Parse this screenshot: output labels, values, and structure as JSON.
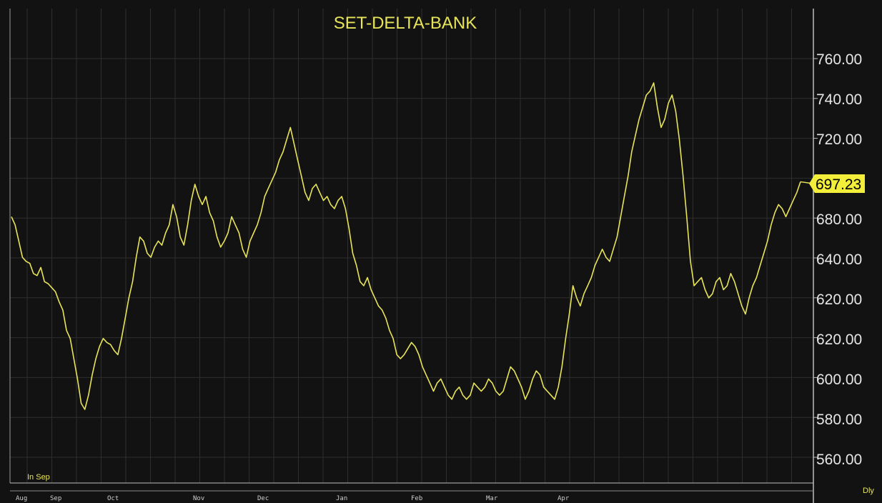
{
  "chart_data": {
    "type": "line",
    "title": "SET-DELTA-BANK",
    "period_label": "Dly",
    "corner_label": "In Sep",
    "y_tick_labels": [
      "760.00",
      "740.00",
      "720.00",
      "680.00",
      "640.00",
      "620.00",
      "620.00",
      "600.00",
      "580.00",
      "560.00"
    ],
    "last_value_label": "697.23",
    "grid": true,
    "colors": {
      "background": "#121212",
      "line": "#e8e45a",
      "grid": "#2e2e2e",
      "text": "#e6e6e6",
      "badge": "#f3ee3a"
    },
    "x_month_labels": [
      "Aug",
      "Sep",
      "Oct",
      "Nov",
      "Dec",
      "Jan",
      "Feb",
      "Mar",
      "Apr"
    ],
    "series": [
      {
        "values": [
          680,
          676,
          668,
          660,
          658,
          657,
          652,
          651,
          655,
          648,
          647,
          645,
          643,
          638,
          634,
          624,
          620,
          610,
          600,
          588,
          585,
          592,
          602,
          610,
          616,
          620,
          618,
          617,
          614,
          612,
          620,
          630,
          640,
          648,
          660,
          670,
          668,
          662,
          660,
          665,
          668,
          666,
          672,
          676,
          686,
          680,
          670,
          666,
          676,
          688,
          696,
          690,
          686,
          690,
          682,
          678,
          670,
          665,
          668,
          672,
          680,
          676,
          672,
          664,
          660,
          668,
          672,
          676,
          682,
          690,
          694,
          698,
          702,
          708,
          712,
          718,
          724,
          716,
          708,
          700,
          692,
          688,
          694,
          696,
          692,
          688,
          690,
          686,
          684,
          688,
          690,
          684,
          674,
          662,
          656,
          648,
          646,
          650,
          644,
          640,
          636,
          634,
          630,
          624,
          620,
          612,
          610,
          612,
          615,
          618,
          616,
          612,
          606,
          602,
          598,
          594,
          598,
          600,
          596,
          592,
          590,
          594,
          596,
          592,
          590,
          592,
          598,
          596,
          594,
          596,
          600,
          598,
          594,
          592,
          594,
          600,
          606,
          604,
          600,
          596,
          590,
          594,
          600,
          604,
          602,
          596,
          594,
          592,
          590,
          596,
          606,
          620,
          632,
          646,
          640,
          636,
          642,
          646,
          650,
          656,
          660,
          664,
          660,
          658,
          664,
          670,
          680,
          690,
          700,
          712,
          720,
          728,
          734,
          740,
          742,
          746,
          734,
          724,
          728,
          736,
          740,
          732,
          718,
          700,
          680,
          658,
          646,
          648,
          650,
          644,
          640,
          642,
          648,
          650,
          644,
          646,
          652,
          648,
          642,
          636,
          632,
          640,
          646,
          650,
          656,
          662,
          668,
          676,
          682,
          686,
          684,
          680,
          684,
          688,
          692,
          697.23
        ]
      }
    ]
  }
}
